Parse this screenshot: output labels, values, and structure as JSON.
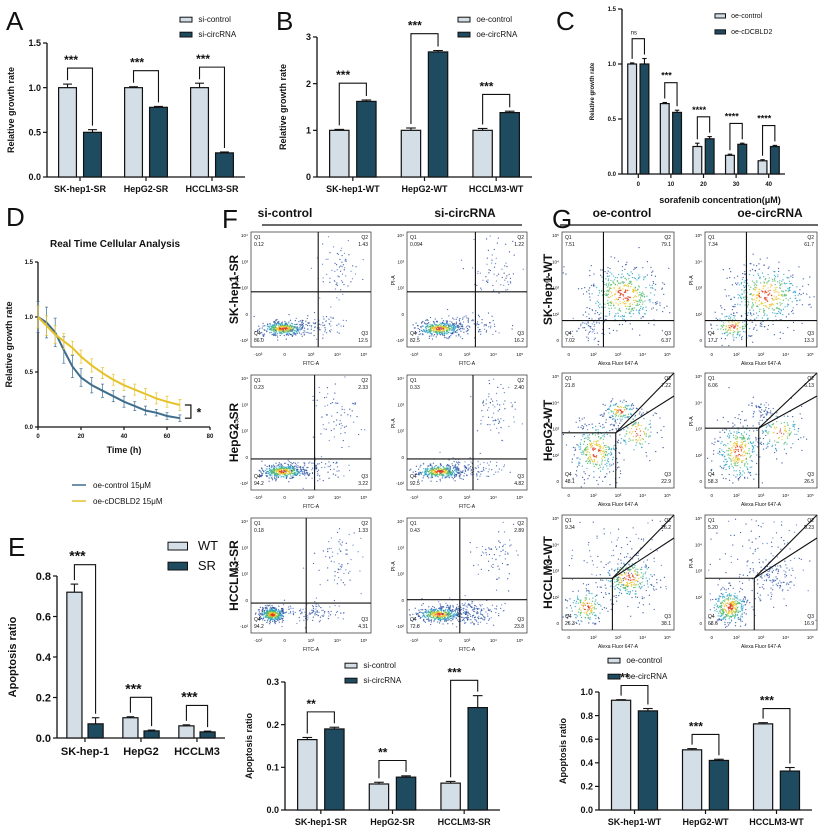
{
  "panel_labels": [
    "A",
    "B",
    "C",
    "D",
    "E",
    "F",
    "G"
  ],
  "colors": {
    "light_bar": "#d4dee6",
    "dark_bar": "#1f4b61",
    "line_control": "#3f6d8d",
    "line_cdcbld2": "#e6c12a"
  },
  "chart_data": [
    {
      "id": "A",
      "type": "bar",
      "ylabel": "Relative growth rate",
      "xlabel": "",
      "ylim": [
        0,
        1.5
      ],
      "ytick_labels": [
        "0.0",
        "0.5",
        "1.0",
        "1.5"
      ],
      "categories": [
        "SK-hep1-SR",
        "HepG2-SR",
        "HCCLM3-SR"
      ],
      "series": [
        {
          "name": "si-control",
          "values": [
            1.0,
            1.0,
            1.0
          ],
          "errors": [
            0.04,
            0.01,
            0.05
          ]
        },
        {
          "name": "si-circRNA",
          "values": [
            0.5,
            0.78,
            0.27
          ],
          "errors": [
            0.03,
            0.01,
            0.01
          ]
        }
      ],
      "significance": [
        "***",
        "***",
        "***"
      ],
      "legend": "top-right"
    },
    {
      "id": "B",
      "type": "bar",
      "ylabel": "Relative growth rate",
      "xlabel": "",
      "ylim": [
        0,
        3
      ],
      "ytick_labels": [
        "0",
        "1",
        "2",
        "3"
      ],
      "categories": [
        "SK-hep1-WT",
        "HepG2-WT",
        "HCCLM3-WT"
      ],
      "series": [
        {
          "name": "oe-control",
          "values": [
            1.0,
            1.0,
            1.0
          ],
          "errors": [
            0.02,
            0.05,
            0.04
          ]
        },
        {
          "name": "oe-circRNA",
          "values": [
            1.62,
            2.68,
            1.38
          ],
          "errors": [
            0.03,
            0.03,
            0.03
          ]
        }
      ],
      "significance": [
        "***",
        "***",
        "***"
      ],
      "legend": "top-right"
    },
    {
      "id": "C",
      "type": "bar",
      "ylabel": "Relative growth rate",
      "xlabel": "sorafenib concentration(μM)",
      "ylim": [
        0,
        1.5
      ],
      "ytick_labels": [
        "0.0",
        "0.5",
        "1.0",
        "1.5"
      ],
      "categories": [
        "0",
        "10",
        "20",
        "30",
        "40"
      ],
      "series": [
        {
          "name": "oe-control",
          "values": [
            1.0,
            0.64,
            0.25,
            0.17,
            0.12
          ],
          "errors": [
            0.01,
            0.01,
            0.03,
            0.01,
            0.01
          ]
        },
        {
          "name": "oe-cDCBLD2",
          "values": [
            1.0,
            0.56,
            0.32,
            0.27,
            0.25
          ],
          "errors": [
            0.05,
            0.02,
            0.02,
            0.01,
            0.01
          ]
        }
      ],
      "significance": [
        "ns",
        "***",
        "****",
        "****",
        "****"
      ],
      "legend": "top-right"
    },
    {
      "id": "D",
      "type": "line",
      "title": "Real Time Cellular Analysis",
      "ylabel": "Relative growth rate",
      "xlabel": "Time (h)",
      "xlim": [
        0,
        80
      ],
      "ylim": [
        0,
        1.5
      ],
      "xtick_labels": [
        "0",
        "20",
        "40",
        "60",
        "80"
      ],
      "ytick_labels": [
        "0.0",
        "0.5",
        "1.0",
        "1.5"
      ],
      "series": [
        {
          "name": "oe-control 15μM",
          "x": [
            0,
            4,
            8,
            12,
            16,
            20,
            25,
            30,
            35,
            40,
            45,
            50,
            55,
            60,
            66
          ],
          "y": [
            1.0,
            0.95,
            0.86,
            0.7,
            0.55,
            0.45,
            0.38,
            0.33,
            0.28,
            0.23,
            0.19,
            0.15,
            0.13,
            0.1,
            0.08
          ],
          "errors": [
            0.14,
            0.14,
            0.13,
            0.12,
            0.1,
            0.08,
            0.07,
            0.06,
            0.05,
            0.05,
            0.04,
            0.04,
            0.03,
            0.03,
            0.03
          ]
        },
        {
          "name": "oe-cDCBLD2 15μM",
          "x": [
            0,
            4,
            8,
            12,
            16,
            20,
            25,
            30,
            35,
            40,
            45,
            50,
            55,
            60,
            66
          ],
          "y": [
            1.0,
            0.92,
            0.84,
            0.78,
            0.72,
            0.64,
            0.56,
            0.49,
            0.43,
            0.38,
            0.34,
            0.3,
            0.26,
            0.23,
            0.2
          ],
          "errors": [
            0.1,
            0.09,
            0.08,
            0.07,
            0.06,
            0.06,
            0.06,
            0.05,
            0.05,
            0.05,
            0.05,
            0.05,
            0.05,
            0.05,
            0.05
          ]
        }
      ],
      "significance": "*",
      "legend": "bottom"
    },
    {
      "id": "E",
      "type": "bar",
      "ylabel": "Apoptosis ratio",
      "xlabel": "",
      "ylim": [
        0,
        0.8
      ],
      "ytick_labels": [
        "0.0",
        "0.2",
        "0.4",
        "0.6",
        "0.8"
      ],
      "categories": [
        "SK-hep-1",
        "HepG2",
        "HCCLM3"
      ],
      "series": [
        {
          "name": "WT",
          "values": [
            0.72,
            0.1,
            0.06
          ],
          "errors": [
            0.04,
            0.005,
            0.005
          ]
        },
        {
          "name": "SR",
          "values": [
            0.07,
            0.035,
            0.03
          ],
          "errors": [
            0.03,
            0.004,
            0.004
          ]
        }
      ],
      "significance": [
        "***",
        "***",
        "***"
      ],
      "legend": "top-right"
    },
    {
      "id": "F-bar",
      "type": "bar",
      "ylabel": "Apoptosis ratio",
      "xlabel": "",
      "ylim": [
        0,
        0.3
      ],
      "ytick_labels": [
        "0.0",
        "0.1",
        "0.2",
        "0.3"
      ],
      "categories": [
        "SK-hep1-SR",
        "HepG2-SR",
        "HCCLM3-SR"
      ],
      "series": [
        {
          "name": "si-control",
          "values": [
            0.165,
            0.061,
            0.063
          ],
          "errors": [
            0.005,
            0.004,
            0.004
          ]
        },
        {
          "name": "si-circRNA",
          "values": [
            0.19,
            0.077,
            0.24
          ],
          "errors": [
            0.004,
            0.003,
            0.028
          ]
        }
      ],
      "significance": [
        "**",
        "**",
        "***"
      ],
      "legend": "top"
    },
    {
      "id": "G-bar",
      "type": "bar",
      "ylabel": "Apoptosis ratio",
      "xlabel": "",
      "ylim": [
        0,
        1.0
      ],
      "ytick_labels": [
        "0.0",
        "0.2",
        "0.4",
        "0.6",
        "0.8",
        "1.0"
      ],
      "categories": [
        "SK-hep1-WT",
        "HepG2-WT",
        "HCCLM3-WT"
      ],
      "series": [
        {
          "name": "oe-control",
          "values": [
            0.93,
            0.51,
            0.73
          ],
          "errors": [
            0.005,
            0.01,
            0.01
          ]
        },
        {
          "name": "oe-circRNA",
          "values": [
            0.84,
            0.42,
            0.33
          ],
          "errors": [
            0.02,
            0.01,
            0.03
          ]
        }
      ],
      "significance": [
        "**",
        "***",
        "***"
      ],
      "legend": "top"
    }
  ],
  "flow_panels": [
    {
      "id": "F",
      "columns": [
        "si-control",
        "si-circRNA"
      ],
      "rows": [
        "SK-hep1-SR",
        "HepG2-SR",
        "HCCLM3-SR"
      ],
      "x_axis_label": "FITC-A",
      "y_axis_label": "PI-A",
      "x_ticks": [
        "-10³",
        "0",
        "10³",
        "10⁴",
        "10⁵"
      ],
      "y_ticks": [
        "-10²",
        "0",
        "10²",
        "10³",
        "10⁴"
      ],
      "quadrant_names": [
        "Q1",
        "Q2",
        "Q3",
        "Q4"
      ],
      "plots": [
        [
          {
            "q1": "0.12",
            "q2": "1.43",
            "q3": "12.5",
            "q4": "86.0"
          },
          {
            "q1": "0.094",
            "q2": "1.22",
            "q3": "16.2",
            "q4": "82.5"
          }
        ],
        [
          {
            "q1": "0.23",
            "q2": "2.33",
            "q3": "3.22",
            "q4": "94.2"
          },
          {
            "q1": "0.33",
            "q2": "2.40",
            "q3": "4.82",
            "q4": "92.5"
          }
        ],
        [
          {
            "q1": "0.18",
            "q2": "1.33",
            "q3": "4.31",
            "q4": "94.2"
          },
          {
            "q1": "0.43",
            "q2": "2.89",
            "q3": "23.8",
            "q4": "72.8"
          }
        ]
      ]
    },
    {
      "id": "G",
      "columns": [
        "oe-control",
        "oe-circRNA"
      ],
      "rows": [
        "SK-hep1-WT",
        "HepG2-WT",
        "HCCLM3-WT"
      ],
      "x_axis_label": "Alexa Fluor 647-A",
      "y_axis_label": "PI-A",
      "x_ticks": [
        "0",
        "10²",
        "10³",
        "10⁴",
        "10⁵"
      ],
      "y_ticks": [
        "0",
        "10²",
        "10³",
        "10⁴",
        "10⁵"
      ],
      "quadrant_names": [
        "Q1",
        "Q2",
        "Q3",
        "Q4"
      ],
      "plots": [
        [
          {
            "q1": "7.51",
            "q2": "79.1",
            "q3": "6.37",
            "q4": "7.02"
          },
          {
            "q1": "7.34",
            "q2": "61.7",
            "q3": "13.3",
            "q4": "17.7"
          }
        ],
        [
          {
            "q1": "21.8",
            "q2": "7.22",
            "q3": "22.9",
            "q4": "48.1"
          },
          {
            "q1": "6.06",
            "q2": "6.13",
            "q3": "26.5",
            "q4": "58.3"
          }
        ],
        [
          {
            "q1": "9.34",
            "q2": "26.2",
            "q3": "38.1",
            "q4": "26.3"
          },
          {
            "q1": "5.20",
            "q2": "9.23",
            "q3": "16.9",
            "q4": "68.6"
          }
        ]
      ]
    }
  ]
}
